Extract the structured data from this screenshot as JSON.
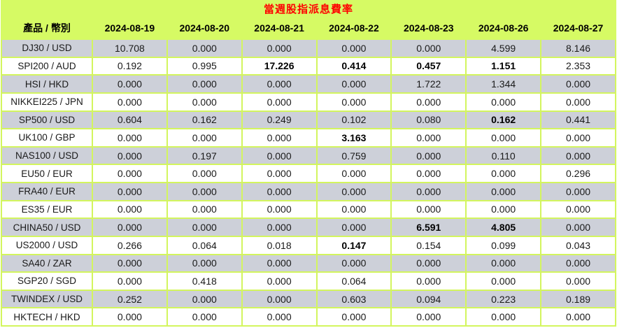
{
  "chart_data": {
    "type": "table",
    "title": "當週股指派息費率",
    "product_header": "產品 / 幣別",
    "columns": [
      "2024-08-19",
      "2024-08-20",
      "2024-08-21",
      "2024-08-22",
      "2024-08-23",
      "2024-08-26",
      "2024-08-27"
    ],
    "rows": [
      {
        "product": "DJ30 / USD",
        "values": [
          "10.708",
          "0.000",
          "0.000",
          "0.000",
          "0.000",
          "4.599",
          "8.146"
        ],
        "bold": []
      },
      {
        "product": "SPI200 / AUD",
        "values": [
          "0.192",
          "0.995",
          "17.226",
          "0.414",
          "0.457",
          "1.151",
          "2.353"
        ],
        "bold": [
          2,
          3,
          4,
          5
        ]
      },
      {
        "product": "HSI / HKD",
        "values": [
          "0.000",
          "0.000",
          "0.000",
          "0.000",
          "1.722",
          "1.344",
          "0.000"
        ],
        "bold": []
      },
      {
        "product": "NIKKEI225 / JPN",
        "values": [
          "0.000",
          "0.000",
          "0.000",
          "0.000",
          "0.000",
          "0.000",
          "0.000"
        ],
        "bold": []
      },
      {
        "product": "SP500 / USD",
        "values": [
          "0.604",
          "0.162",
          "0.249",
          "0.102",
          "0.080",
          "0.162",
          "0.441"
        ],
        "bold": [
          5
        ]
      },
      {
        "product": "UK100 / GBP",
        "values": [
          "0.000",
          "0.000",
          "0.000",
          "3.163",
          "0.000",
          "0.000",
          "0.000"
        ],
        "bold": [
          3
        ]
      },
      {
        "product": "NAS100 / USD",
        "values": [
          "0.000",
          "0.197",
          "0.000",
          "0.759",
          "0.000",
          "0.110",
          "0.000"
        ],
        "bold": []
      },
      {
        "product": "EU50 / EUR",
        "values": [
          "0.000",
          "0.000",
          "0.000",
          "0.000",
          "0.000",
          "0.000",
          "0.296"
        ],
        "bold": []
      },
      {
        "product": "FRA40 / EUR",
        "values": [
          "0.000",
          "0.000",
          "0.000",
          "0.000",
          "0.000",
          "0.000",
          "0.000"
        ],
        "bold": []
      },
      {
        "product": "ES35 / EUR",
        "values": [
          "0.000",
          "0.000",
          "0.000",
          "0.000",
          "0.000",
          "0.000",
          "0.000"
        ],
        "bold": []
      },
      {
        "product": "CHINA50 / USD",
        "values": [
          "0.000",
          "0.000",
          "0.000",
          "0.000",
          "6.591",
          "4.805",
          "0.000"
        ],
        "bold": [
          4,
          5
        ]
      },
      {
        "product": "US2000 / USD",
        "values": [
          "0.266",
          "0.064",
          "0.018",
          "0.147",
          "0.154",
          "0.099",
          "0.043"
        ],
        "bold": [
          3
        ]
      },
      {
        "product": "SA40 / ZAR",
        "values": [
          "0.000",
          "0.000",
          "0.000",
          "0.000",
          "0.000",
          "0.000",
          "0.000"
        ],
        "bold": []
      },
      {
        "product": "SGP20 / SGD",
        "values": [
          "0.000",
          "0.418",
          "0.000",
          "0.064",
          "0.000",
          "0.000",
          "0.000"
        ],
        "bold": []
      },
      {
        "product": "TWINDEX / USD",
        "values": [
          "0.252",
          "0.000",
          "0.000",
          "0.603",
          "0.094",
          "0.223",
          "0.189"
        ],
        "bold": []
      },
      {
        "product": "HKTECH / HKD",
        "values": [
          "0.000",
          "0.000",
          "0.000",
          "0.000",
          "0.000",
          "0.000",
          "0.000"
        ],
        "bold": []
      }
    ],
    "colors": {
      "header_bg": "#d6fa64",
      "gridline": "#d3f55e",
      "row_alt_gray": "#cdd0d9",
      "row_white": "#ffffff",
      "title_text": "#ff0000",
      "value_text": "#1a1a1a"
    },
    "layout": {
      "legend": "none",
      "grid": "on",
      "striping": "alternating rows, first data row gray",
      "alignment": "center"
    }
  }
}
